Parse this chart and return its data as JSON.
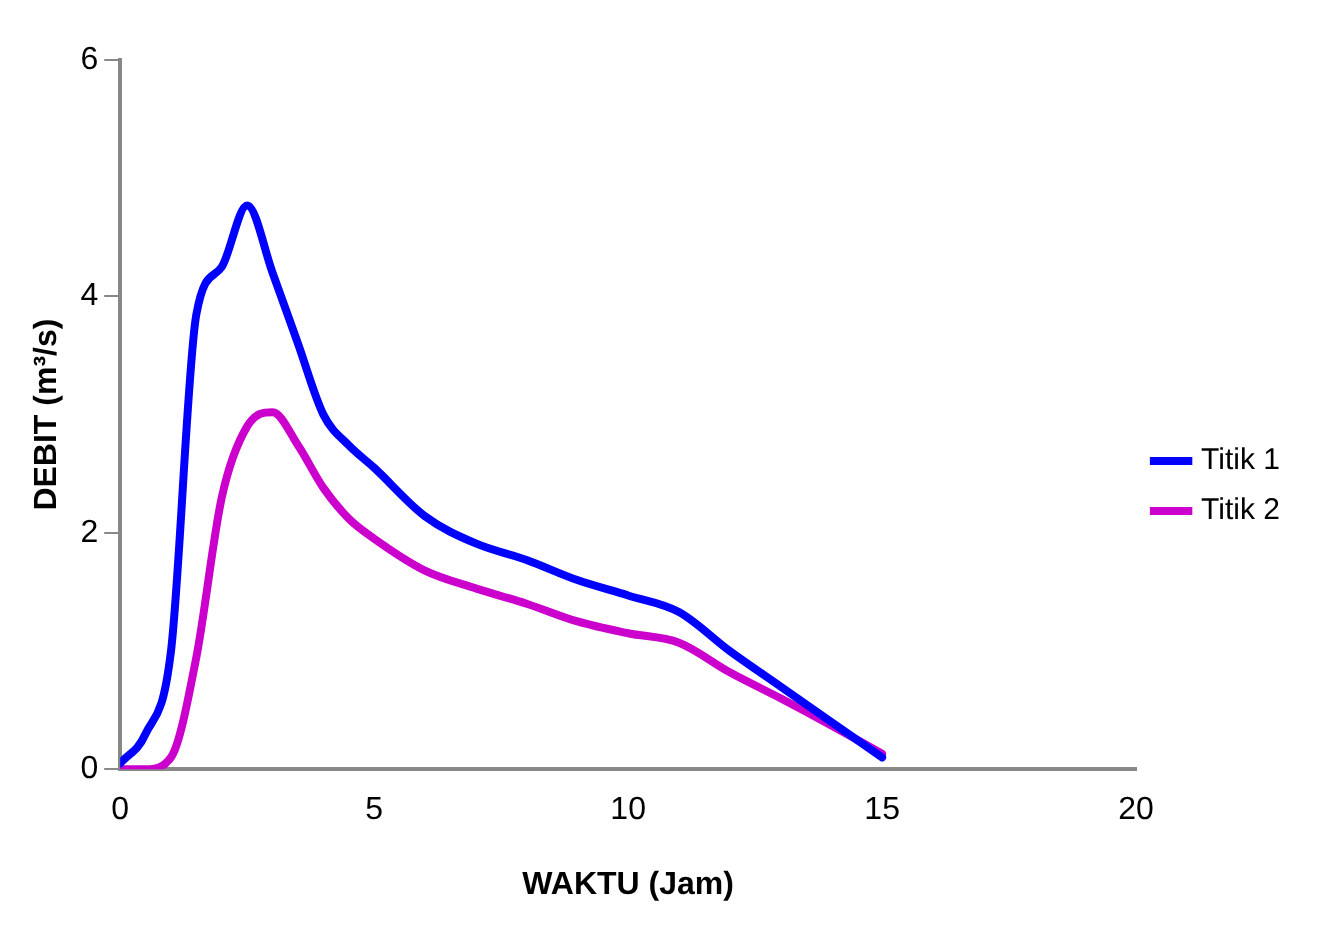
{
  "chart_data": {
    "type": "line",
    "xlabel": "WAKTU (Jam)",
    "ylabel": "DEBIT (m³/s)",
    "xlim": [
      0,
      20
    ],
    "xticks": [
      0,
      5,
      10,
      15,
      20
    ],
    "ylim": [
      0,
      6
    ],
    "yticks": [
      0,
      2,
      4,
      6
    ],
    "grid": false,
    "legend": "right",
    "marker": "none",
    "line_style": "solid",
    "series": [
      {
        "name": "Titik 1",
        "color": "#0000ff",
        "x": [
          0,
          0.5,
          1,
          1.5,
          2,
          2.5,
          3,
          3.5,
          4,
          4.5,
          5,
          6,
          7,
          8,
          9,
          10,
          11,
          12,
          13,
          14,
          15
        ],
        "values": [
          0.05,
          0.3,
          1.0,
          3.85,
          4.25,
          4.77,
          4.2,
          3.6,
          3.0,
          2.74,
          2.55,
          2.14,
          1.91,
          1.77,
          1.6,
          1.47,
          1.33,
          1.0,
          0.7,
          0.4,
          0.1
        ]
      },
      {
        "name": "Titik 2",
        "color": "#cc00cc",
        "x": [
          0,
          0.5,
          1,
          1.5,
          2,
          2.5,
          3,
          3.5,
          4,
          4.5,
          5,
          6,
          7,
          8,
          9,
          10,
          11,
          12,
          13,
          14,
          15
        ],
        "values": [
          0,
          0,
          0.1,
          0.95,
          2.3,
          2.9,
          3.02,
          2.74,
          2.38,
          2.12,
          1.95,
          1.68,
          1.53,
          1.4,
          1.25,
          1.15,
          1.07,
          0.82,
          0.6,
          0.37,
          0.13
        ]
      }
    ]
  }
}
